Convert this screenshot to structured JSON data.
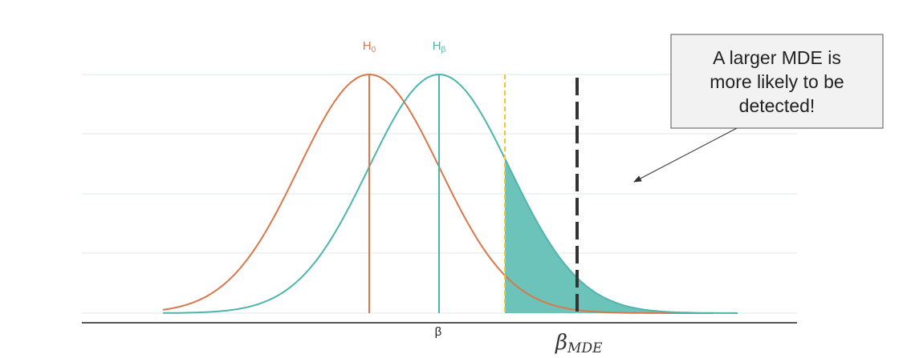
{
  "labels": {
    "h0": {
      "main": "H",
      "sub": "0"
    },
    "hb": {
      "main": "H",
      "sub": "β"
    },
    "beta": "β",
    "beta_mde": {
      "main": "β",
      "sub": "MDE"
    }
  },
  "callout": {
    "lines": [
      "A larger MDE is",
      "more likely to be",
      "detected!"
    ]
  }
}
